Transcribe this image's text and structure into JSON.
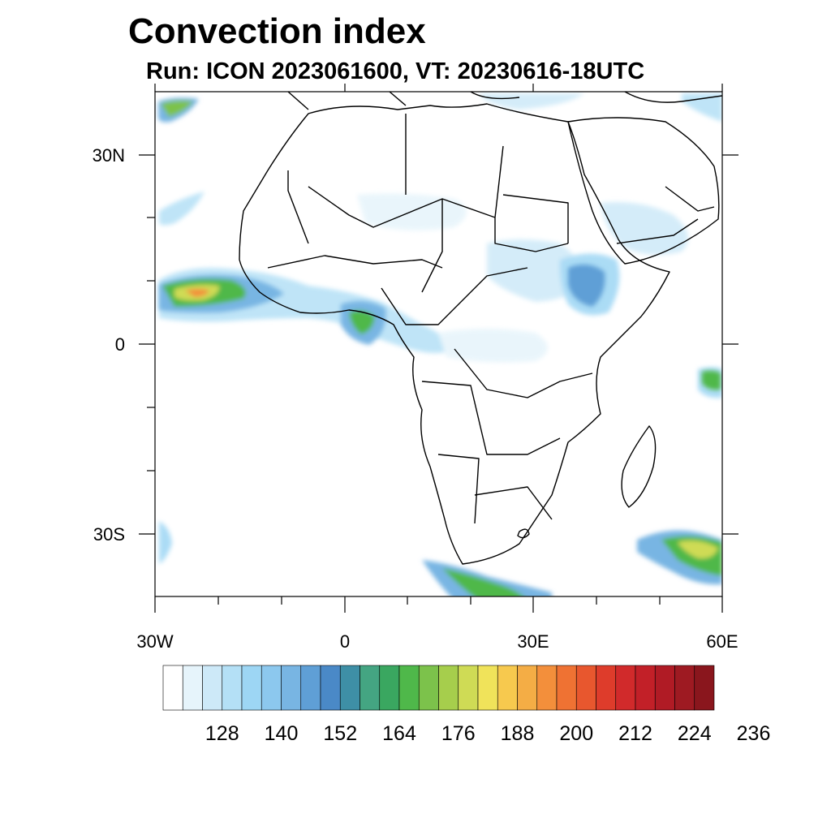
{
  "title": "Convection index",
  "subtitle": "Run: ICON 2023061600,  VT: 20230616-18UTC",
  "map": {
    "lon_range": [
      -30,
      60
    ],
    "lat_range": [
      -40,
      40
    ],
    "x_tick_labels": [
      "30W",
      "0",
      "30E",
      "60E"
    ],
    "y_tick_labels": [
      "30N",
      "0",
      "30S"
    ],
    "features": [
      "coastlines",
      "country borders"
    ]
  },
  "colorbar": {
    "labels": [
      "128",
      "140",
      "152",
      "164",
      "176",
      "188",
      "200",
      "212",
      "224",
      "236"
    ],
    "colors": [
      "#ffffff",
      "#e6f4fb",
      "#cde9f8",
      "#b4e0f6",
      "#9dd6f4",
      "#8cc8ee",
      "#78b5e3",
      "#5f9fd6",
      "#4a89c7",
      "#3e8fa6",
      "#44a582",
      "#3aa760",
      "#4fb84a",
      "#7cc24b",
      "#a6ce4c",
      "#cfdb55",
      "#f0e35a",
      "#f7c94e",
      "#f4ad45",
      "#f38f3b",
      "#ef7233",
      "#e8572e",
      "#de3c2b",
      "#d12a2b",
      "#c22028",
      "#b01b25",
      "#9e1a22",
      "#8a161d"
    ]
  }
}
